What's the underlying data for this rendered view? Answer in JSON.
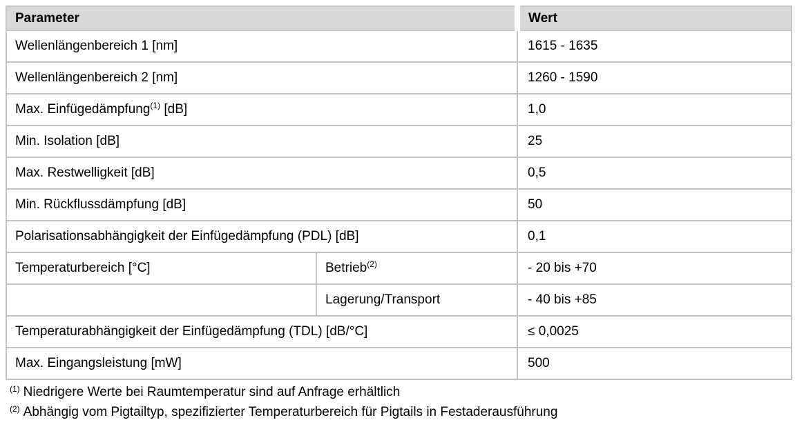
{
  "table": {
    "header": {
      "parameter": "Parameter",
      "wert": "Wert"
    },
    "rows": [
      {
        "param": "Wellenlängenbereich 1 [nm]",
        "value": "1615 - 1635"
      },
      {
        "param": "Wellenlängenbereich 2 [nm]",
        "value": "1260 - 1590"
      },
      {
        "param": "Max. Einfügedämpfung",
        "param_sup": "(1)",
        "param_suffix": " [dB]",
        "value": "1,0"
      },
      {
        "param": "Min. Isolation [dB]",
        "value": "25"
      },
      {
        "param": "Max. Restwelligkeit [dB]",
        "value": "0,5"
      },
      {
        "param": "Min. Rückflussdämpfung [dB]",
        "value": "50"
      },
      {
        "param": "Polarisationsabhängigkeit der Einfügedämpfung (PDL) [dB]",
        "value": "0,1"
      },
      {
        "param": "Temperaturbereich [°C]",
        "sub": "Betrieb",
        "sub_sup": "(2)",
        "value": "- 20 bis +70"
      },
      {
        "param": "",
        "sub": "Lagerung/Transport",
        "value": "- 40 bis +85"
      },
      {
        "param": "Temperaturabhängigkeit der Einfügedämpfung (TDL) [dB/°C]",
        "value": "≤ 0,0025"
      },
      {
        "param": "Max. Eingangsleistung [mW]",
        "value": "500"
      }
    ]
  },
  "footnotes": [
    {
      "sup": "(1)",
      "text": "Niedrigere Werte bei Raumtemperatur sind auf Anfrage erhältlich"
    },
    {
      "sup": "(2)",
      "text": "Abhängig vom Pigtailtyp, spezifizierter Temperaturbereich für Pigtails in Festaderausführung"
    }
  ],
  "colors": {
    "header_bg": "#d9d9d9",
    "border": "#c3c3c3",
    "text": "#000000"
  }
}
